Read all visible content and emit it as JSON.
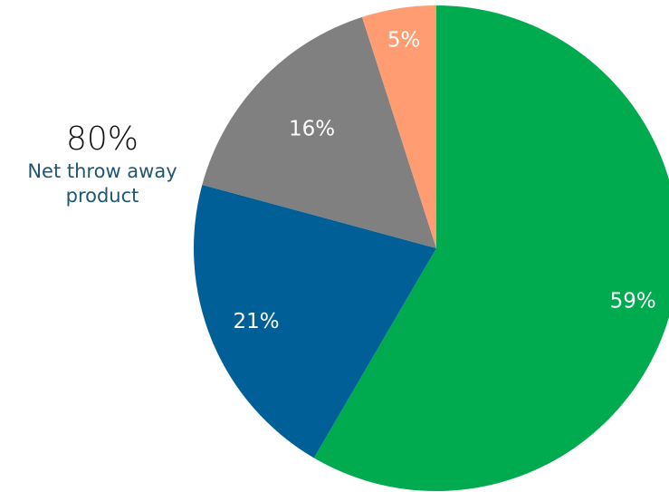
{
  "chart_data": {
    "type": "pie",
    "categories": [
      "",
      "",
      "",
      ""
    ],
    "values": [
      59,
      21,
      16,
      5
    ],
    "labels": [
      "59%",
      "21%",
      "16%",
      "5%"
    ],
    "colors": [
      "#00aa4f",
      "#005f96",
      "#808080",
      "#ff9c72"
    ],
    "start_angle": "12 o'clock",
    "direction": "clockwise"
  },
  "callout": {
    "value": "80%",
    "label": "Net throw away product"
  }
}
